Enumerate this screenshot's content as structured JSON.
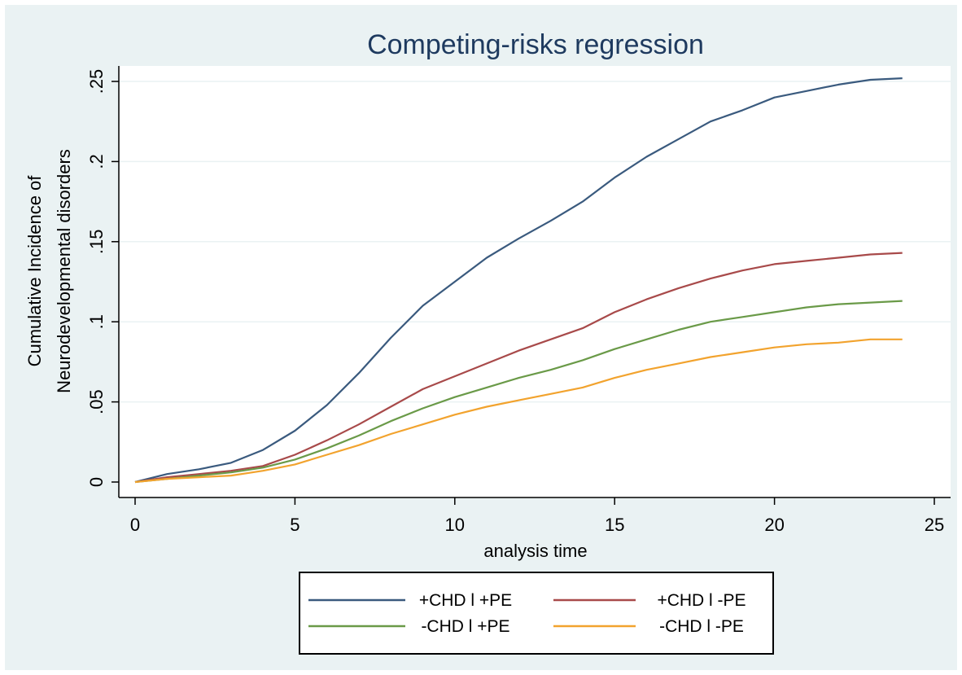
{
  "chart_data": {
    "type": "line",
    "title": "Competing-risks regression",
    "xlabel": "analysis time",
    "ylabel_lines": [
      "Cumulative Incidence of",
      "Neurodevelopmental disorders"
    ],
    "xlim": [
      0,
      25
    ],
    "ylim": [
      0,
      0.25
    ],
    "x_ticks": [
      0,
      5,
      10,
      15,
      20,
      25
    ],
    "x_tick_labels": [
      "0",
      "5",
      "10",
      "15",
      "20",
      "25"
    ],
    "y_ticks": [
      0,
      0.05,
      0.1,
      0.15,
      0.2,
      0.25
    ],
    "y_tick_labels": [
      "0",
      ".05",
      ".1",
      ".15",
      ".2",
      ".25"
    ],
    "grid": true,
    "legend_position": "bottom",
    "x": [
      0,
      1,
      2,
      3,
      4,
      5,
      6,
      7,
      8,
      9,
      10,
      11,
      12,
      13,
      14,
      15,
      16,
      17,
      18,
      19,
      20,
      21,
      22,
      23,
      24
    ],
    "series": [
      {
        "name": "+CHD l +PE",
        "color": "#3a5a7e",
        "values": [
          0,
          0.005,
          0.008,
          0.012,
          0.02,
          0.032,
          0.048,
          0.068,
          0.09,
          0.11,
          0.125,
          0.14,
          0.152,
          0.163,
          0.175,
          0.19,
          0.203,
          0.214,
          0.225,
          0.232,
          0.24,
          0.244,
          0.248,
          0.251,
          0.252
        ]
      },
      {
        "name": "+CHD l -PE",
        "color": "#a84a4a",
        "values": [
          0,
          0.003,
          0.005,
          0.007,
          0.01,
          0.017,
          0.026,
          0.036,
          0.047,
          0.058,
          0.066,
          0.074,
          0.082,
          0.089,
          0.096,
          0.106,
          0.114,
          0.121,
          0.127,
          0.132,
          0.136,
          0.138,
          0.14,
          0.142,
          0.143
        ]
      },
      {
        "name": "-CHD l +PE",
        "color": "#6a9a48",
        "values": [
          0,
          0.002,
          0.004,
          0.006,
          0.009,
          0.014,
          0.021,
          0.029,
          0.038,
          0.046,
          0.053,
          0.059,
          0.065,
          0.07,
          0.076,
          0.083,
          0.089,
          0.095,
          0.1,
          0.103,
          0.106,
          0.109,
          0.111,
          0.112,
          0.113
        ]
      },
      {
        "name": "-CHD l -PE",
        "color": "#f2a32e",
        "values": [
          0,
          0.002,
          0.003,
          0.004,
          0.007,
          0.011,
          0.017,
          0.023,
          0.03,
          0.036,
          0.042,
          0.047,
          0.051,
          0.055,
          0.059,
          0.065,
          0.07,
          0.074,
          0.078,
          0.081,
          0.084,
          0.086,
          0.087,
          0.089,
          0.089
        ]
      }
    ]
  }
}
